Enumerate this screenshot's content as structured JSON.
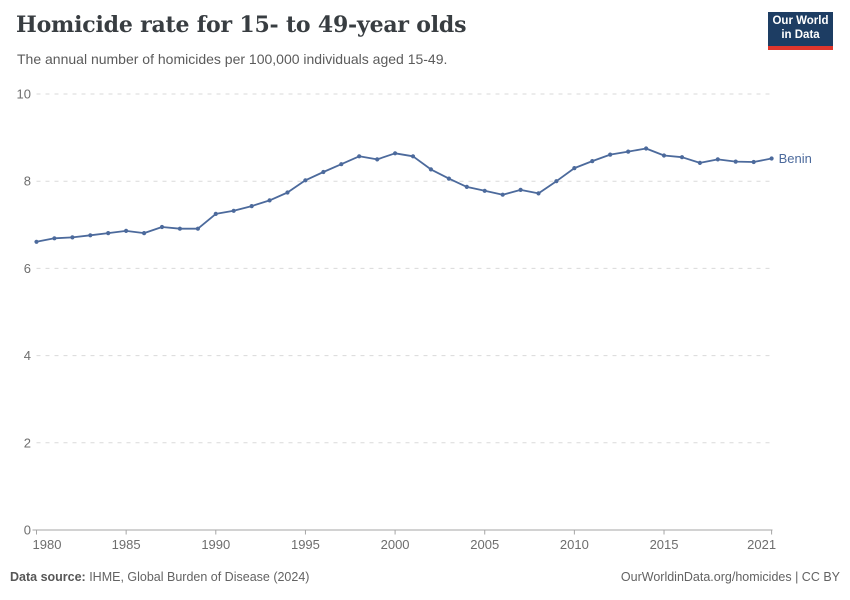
{
  "header": {
    "title": "Homicide rate for 15- to 49-year olds",
    "subtitle": "The annual number of homicides per 100,000 individuals aged 15-49.",
    "logo_line1": "Our World",
    "logo_line2": "in Data"
  },
  "footer": {
    "source_label": "Data source:",
    "source_value": " IHME, Global Burden of Disease (2024)",
    "link": "OurWorldinData.org/homicides | CC BY"
  },
  "colors": {
    "line": "#4C6A9C",
    "entity_label": "#4C6A9C",
    "logo_bg": "#1d3d63",
    "logo_stripe": "#e0362c",
    "grid": "#dadada",
    "axis": "#a5a5a5",
    "tick_text": "#6e6e6e"
  },
  "chart_data": {
    "type": "line",
    "title": "Homicide rate for 15- to 49-year olds",
    "subtitle": "The annual number of homicides per 100,000 individuals aged 15-49.",
    "xlabel": "",
    "ylabel": "",
    "xlim": [
      1980,
      2021
    ],
    "ylim": [
      0,
      10
    ],
    "x_ticks": [
      1980,
      1985,
      1990,
      1995,
      2000,
      2005,
      2010,
      2015,
      2021
    ],
    "y_ticks": [
      0,
      2,
      4,
      6,
      8,
      10
    ],
    "grid": "horizontal-dashed",
    "legend_position": "end-of-line-label",
    "series": [
      {
        "name": "Benin",
        "x": [
          1980,
          1981,
          1982,
          1983,
          1984,
          1985,
          1986,
          1987,
          1988,
          1989,
          1990,
          1991,
          1992,
          1993,
          1994,
          1995,
          1996,
          1997,
          1998,
          1999,
          2000,
          2001,
          2002,
          2003,
          2004,
          2005,
          2006,
          2007,
          2008,
          2009,
          2010,
          2011,
          2012,
          2013,
          2014,
          2015,
          2016,
          2017,
          2018,
          2019,
          2020,
          2021
        ],
        "values": [
          6.61,
          6.69,
          6.71,
          6.76,
          6.81,
          6.86,
          6.81,
          6.95,
          6.91,
          6.91,
          7.25,
          7.32,
          7.43,
          7.56,
          7.74,
          8.02,
          8.21,
          8.39,
          8.57,
          8.5,
          8.64,
          8.57,
          8.27,
          8.06,
          7.87,
          7.78,
          7.69,
          7.8,
          7.72,
          8.0,
          8.3,
          8.46,
          8.61,
          8.68,
          8.75,
          8.59,
          8.55,
          8.42,
          8.5,
          8.45,
          8.44,
          8.52
        ]
      }
    ]
  }
}
